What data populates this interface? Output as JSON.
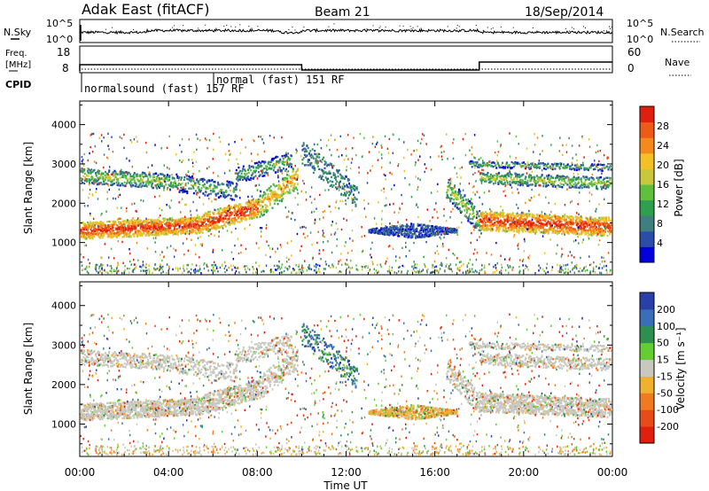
{
  "header": {
    "station": "Adak East (fitACF)",
    "beam": "Beam 21",
    "date": "18/Sep/2014"
  },
  "noise_panel": {
    "left_label": "N.Sky",
    "right_label": "N.Search",
    "left_ticks": [
      "10^5",
      "10^0"
    ],
    "right_ticks": [
      "10^5",
      "10^0"
    ]
  },
  "freq_panel": {
    "left_label_1": "Freq.",
    "left_label_2": "[MHz]",
    "left_ticks": [
      "18",
      "8"
    ],
    "right_label": "Nave",
    "right_ticks": [
      "60",
      "0"
    ],
    "freq_segments": [
      {
        "start": 0,
        "end": 10,
        "value": 12
      },
      {
        "start": 10,
        "end": 18,
        "value": 10
      },
      {
        "start": 18,
        "end": 24,
        "value": 13
      }
    ]
  },
  "cpid": {
    "label": "CPID",
    "annotations": [
      {
        "time": 0,
        "text": "normalsound (fast) 157 RF"
      },
      {
        "time": 6,
        "text": "normal (fast) 151 RF"
      }
    ]
  },
  "power_panel": {
    "ylabel": "Slant Range [km]",
    "y_ticks": [
      "4000",
      "3000",
      "2000",
      "1000"
    ],
    "colorbar_label": "Power [dB]",
    "colorbar_ticks": [
      "28",
      "24",
      "20",
      "16",
      "12",
      "8",
      "4"
    ],
    "colors": [
      "#0000dd",
      "#2a4ea8",
      "#3f7f7f",
      "#2f9f4f",
      "#5fbf3f",
      "#c8c83a",
      "#f3c025",
      "#f58a1c",
      "#ee5a17",
      "#e0200f"
    ]
  },
  "velocity_panel": {
    "ylabel": "Slant Range [km]",
    "y_ticks": [
      "4000",
      "3000",
      "2000",
      "1000"
    ],
    "colorbar_label": "Velocity [m s⁻¹]",
    "colorbar_ticks": [
      "200",
      "100",
      "50",
      "15",
      "-15",
      "-50",
      "-100",
      "-200"
    ],
    "colors": [
      "#2a3fa8",
      "#3a6fb8",
      "#2f8f4f",
      "#66cc33",
      "#c8c8c0",
      "#f0b030",
      "#f07a20",
      "#e84a18",
      "#e0200f"
    ]
  },
  "x_axis": {
    "label": "Time UT",
    "ticks": [
      "00:00",
      "04:00",
      "08:00",
      "12:00",
      "16:00",
      "20:00",
      "00:00"
    ]
  },
  "chart_data": {
    "type": "heatmap",
    "title": "Adak East (fitACF) Beam 21 18/Sep/2014",
    "xlabel": "Time UT",
    "ylabel": "Slant Range [km]",
    "xlim": [
      0,
      24
    ],
    "ylim": [
      180,
      4600
    ],
    "scatter_bands": [
      {
        "name": "lower band",
        "range_km": [
          1000,
          2000
        ],
        "time_h": [
          0,
          10
        ],
        "peak_power_db": 28
      },
      {
        "name": "upper band",
        "range_km": [
          2300,
          3000
        ],
        "time_h": [
          0,
          10
        ],
        "peak_power_db": 20
      },
      {
        "name": "midday patch",
        "range_km": [
          1100,
          1500
        ],
        "time_h": [
          13,
          17
        ],
        "power_db": 8
      },
      {
        "name": "evening lower band",
        "range_km": [
          1100,
          1800
        ],
        "time_h": [
          17,
          24
        ],
        "peak_power_db": 28
      },
      {
        "name": "evening upper band",
        "range_km": [
          2400,
          2900
        ],
        "time_h": [
          18,
          24
        ],
        "peak_power_db": 16
      }
    ]
  }
}
